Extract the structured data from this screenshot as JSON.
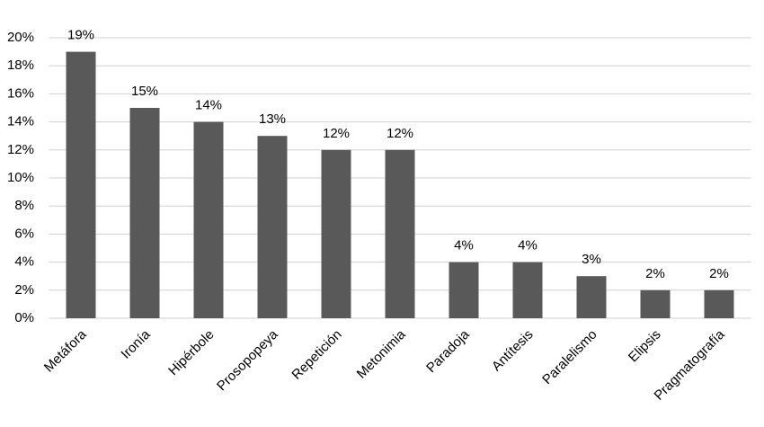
{
  "chart_data": {
    "type": "bar",
    "categories": [
      "Metáfora",
      "Ironía",
      "Hipérbole",
      "Prosopopeya",
      "Repetición",
      "Metonimia",
      "Paradoja",
      "Antítesis",
      "Paralelismo",
      "Elipsis",
      "Pragmatografía"
    ],
    "values": [
      19,
      15,
      14,
      13,
      12,
      12,
      4,
      4,
      3,
      2,
      2
    ],
    "value_labels": [
      "19%",
      "15%",
      "14%",
      "13%",
      "12%",
      "12%",
      "4%",
      "4%",
      "3%",
      "2%",
      "2%"
    ],
    "color": "#595959",
    "ylim": [
      0,
      20
    ],
    "yticks": [
      {
        "value": 0,
        "label": "0%"
      },
      {
        "value": 2,
        "label": "2%"
      },
      {
        "value": 4,
        "label": "4%"
      },
      {
        "value": 6,
        "label": "6%"
      },
      {
        "value": 8,
        "label": "8%"
      },
      {
        "value": 10,
        "label": "10%"
      },
      {
        "value": 12,
        "label": "12%"
      },
      {
        "value": 14,
        "label": "14%"
      },
      {
        "value": 16,
        "label": "16%"
      },
      {
        "value": 18,
        "label": "18%"
      },
      {
        "value": 20,
        "label": "20%"
      }
    ],
    "grid": true
  }
}
